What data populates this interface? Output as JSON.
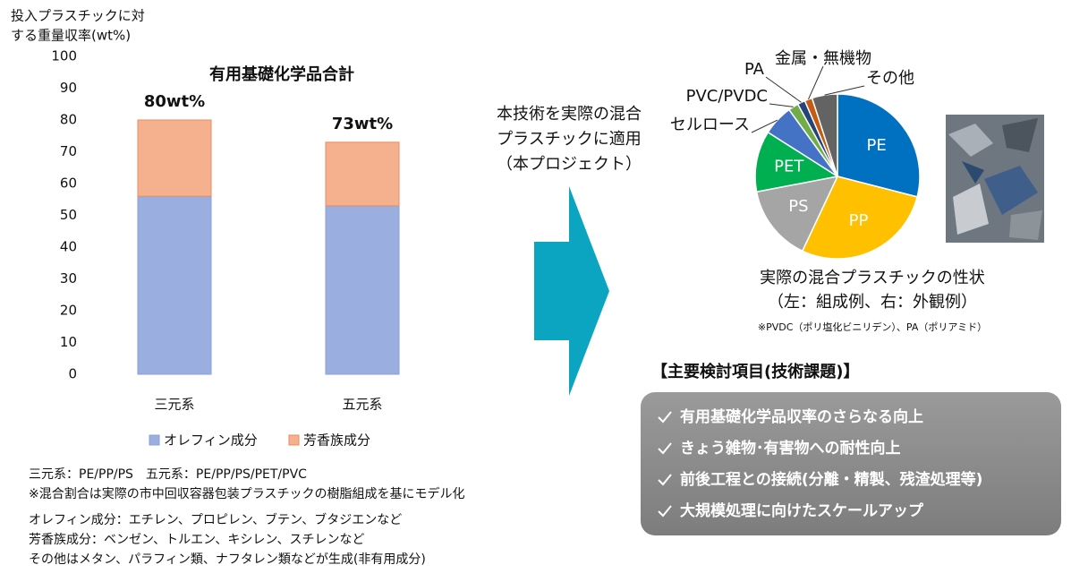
{
  "chart_data": [
    {
      "type": "stacked-bar",
      "title": "有用基礎化学品合計",
      "ylabel": [
        "投入プラスチックに対",
        "する重量収率(wt%)"
      ],
      "categories": [
        "三元系",
        "五元系"
      ],
      "series": [
        {
          "name": "オレフィン成分",
          "color": "#9aaee0",
          "values": [
            56,
            53
          ]
        },
        {
          "name": "芳香族成分",
          "color": "#f5b08e",
          "values": [
            24,
            20
          ]
        }
      ],
      "annotations": [
        "80wt%",
        "73wt%"
      ],
      "ylim": [
        0,
        100
      ],
      "yticks": [
        0,
        10,
        20,
        30,
        40,
        50,
        60,
        70,
        80,
        90,
        100
      ],
      "grid": false
    },
    {
      "type": "pie",
      "categories": [
        "PE",
        "PP",
        "PS",
        "PET",
        "セルロース",
        "PVC/PVDC",
        "PA",
        "金属・無機物",
        "その他"
      ],
      "values": [
        29,
        28,
        15,
        12,
        6,
        2,
        1.5,
        1.5,
        5
      ],
      "colors": [
        "#0070c0",
        "#ffc000",
        "#a5a5a5",
        "#00b050",
        "#4472c4",
        "#70ad47",
        "#264478",
        "#c55a11",
        "#636363"
      ]
    }
  ],
  "footnotes": [
    "三元系：PE/PP/PS　五元系：PE/PP/PS/PET/PVC",
    "※混合割合は実際の市中回収容器包装プラスチックの樹脂組成を基にモデル化",
    "オレフィン成分：エチレン、プロピレン、ブテン、ブタジエンなど",
    "芳香族成分：ベンゼン、トルエン、キシレン、スチレンなど",
    "その他はメタン、パラフィン類、ナフタレン類などが生成(非有用成分)"
  ],
  "arrow_text": [
    "本技術を実際の混合",
    "プラスチックに適用",
    "（本プロジェクト）"
  ],
  "pie_caption": [
    "実際の混合プラスチックの性状",
    "（左：組成例、右：外観例）"
  ],
  "pie_note": "※PVDC（ポリ塩化ビニリデン）、PA（ポリアミド）",
  "tasks": {
    "heading": "【主要検討項目(技術課題)】",
    "items": [
      "有用基礎化学品収率のさらなる向上",
      "きょう雑物･有害物への耐性向上",
      "前後工程との接続(分離・精製、残渣処理等)",
      "大規模処理に向けたスケールアップ"
    ]
  }
}
